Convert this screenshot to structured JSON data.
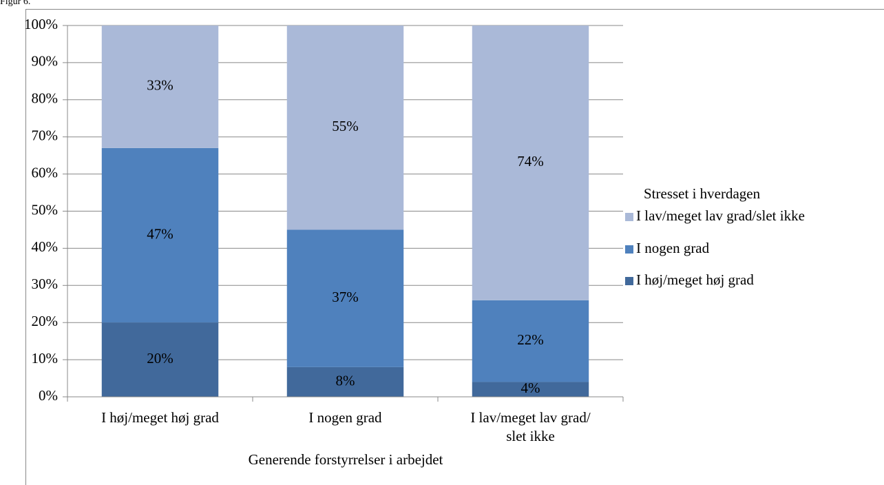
{
  "chart_data": {
    "type": "stacked_bar",
    "figure_label": "Figur 6.",
    "x_label": "Generende forstyrrelser i arbejdet",
    "legend_title": "Stresset i hverdagen",
    "legend": "right",
    "grid": true,
    "categories": [
      "I høj/meget høj grad",
      "I nogen grad",
      "I lav/meget lav grad/\nslet ikke"
    ],
    "series": [
      {
        "name": "I høj/meget høj grad",
        "color": "#41699b",
        "values": [
          20,
          8,
          4
        ],
        "value_labels": [
          "20%",
          "8%",
          "4%"
        ]
      },
      {
        "name": "I nogen grad",
        "color": "#4f81bd",
        "values": [
          47,
          37,
          22
        ],
        "value_labels": [
          "47%",
          "37%",
          "22%"
        ]
      },
      {
        "name": "I lav/meget lav grad/slet ikke",
        "color": "#aab9d8",
        "values": [
          33,
          55,
          74
        ],
        "value_labels": [
          "33%",
          "55%",
          "74%"
        ]
      }
    ],
    "ylim": [
      0,
      100
    ],
    "yticks": [
      {
        "value": 0,
        "label": "0%"
      },
      {
        "value": 10,
        "label": "10%"
      },
      {
        "value": 20,
        "label": "20%"
      },
      {
        "value": 30,
        "label": "30%"
      },
      {
        "value": 40,
        "label": "40%"
      },
      {
        "value": 50,
        "label": "50%"
      },
      {
        "value": 60,
        "label": "60%"
      },
      {
        "value": 70,
        "label": "70%"
      },
      {
        "value": 80,
        "label": "80%"
      },
      {
        "value": 90,
        "label": "90%"
      },
      {
        "value": 100,
        "label": "100%"
      }
    ]
  }
}
